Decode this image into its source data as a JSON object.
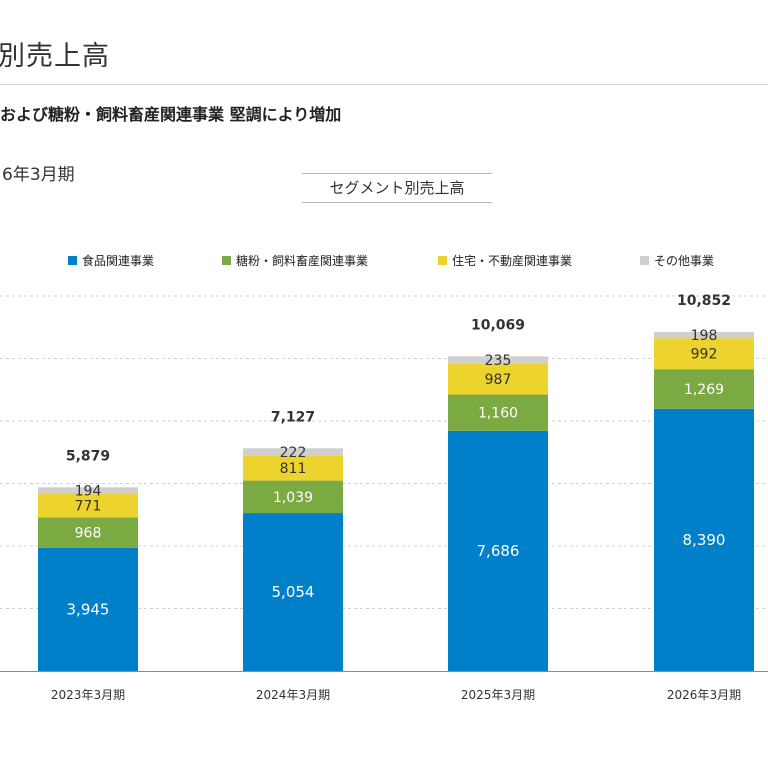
{
  "slide": {
    "title": "別売上高",
    "headline": "および糖粉・飼料畜産関連事業 堅調により増加",
    "period": "6年3月期"
  },
  "colors": {
    "food": "#0080C8",
    "sugar_feed": "#7BAA43",
    "housing": "#EDD32E",
    "other": "#CFCFCF"
  },
  "chart_data": {
    "type": "bar",
    "stacked": true,
    "title": "セグメント別売上高",
    "categories": [
      "2023年3月期",
      "2024年3月期",
      "2025年3月期",
      "2026年3月期"
    ],
    "series": [
      {
        "name": "食品関連事業",
        "color_key": "food",
        "label_color": "#ffffff",
        "values": [
          3945,
          5054,
          7686,
          8390
        ],
        "labels": [
          "3,945",
          "5,054",
          "7,686",
          "8,390"
        ]
      },
      {
        "name": "糖粉・飼料畜産関連事業",
        "color_key": "sugar_feed",
        "label_color": "#ffffff",
        "values": [
          968,
          1039,
          1160,
          1269
        ],
        "labels": [
          "968",
          "1,039",
          "1,160",
          "1,269"
        ]
      },
      {
        "name": "住宅・不動産関連事業",
        "color_key": "housing",
        "label_color": "#333333",
        "values": [
          771,
          811,
          987,
          992
        ],
        "labels": [
          "771",
          "811",
          "987",
          "992"
        ]
      },
      {
        "name": "その他事業",
        "color_key": "other",
        "label_color": "#333333",
        "values": [
          194,
          222,
          235,
          198
        ],
        "labels": [
          "194",
          "222",
          "235",
          "198"
        ]
      }
    ],
    "totals": [
      5879,
      7127,
      10069,
      10852
    ],
    "total_labels": [
      "5,879",
      "7,127",
      "10,069",
      "10,852"
    ],
    "ylim": [
      0,
      12000
    ],
    "grid": true,
    "legend_position": "top"
  }
}
